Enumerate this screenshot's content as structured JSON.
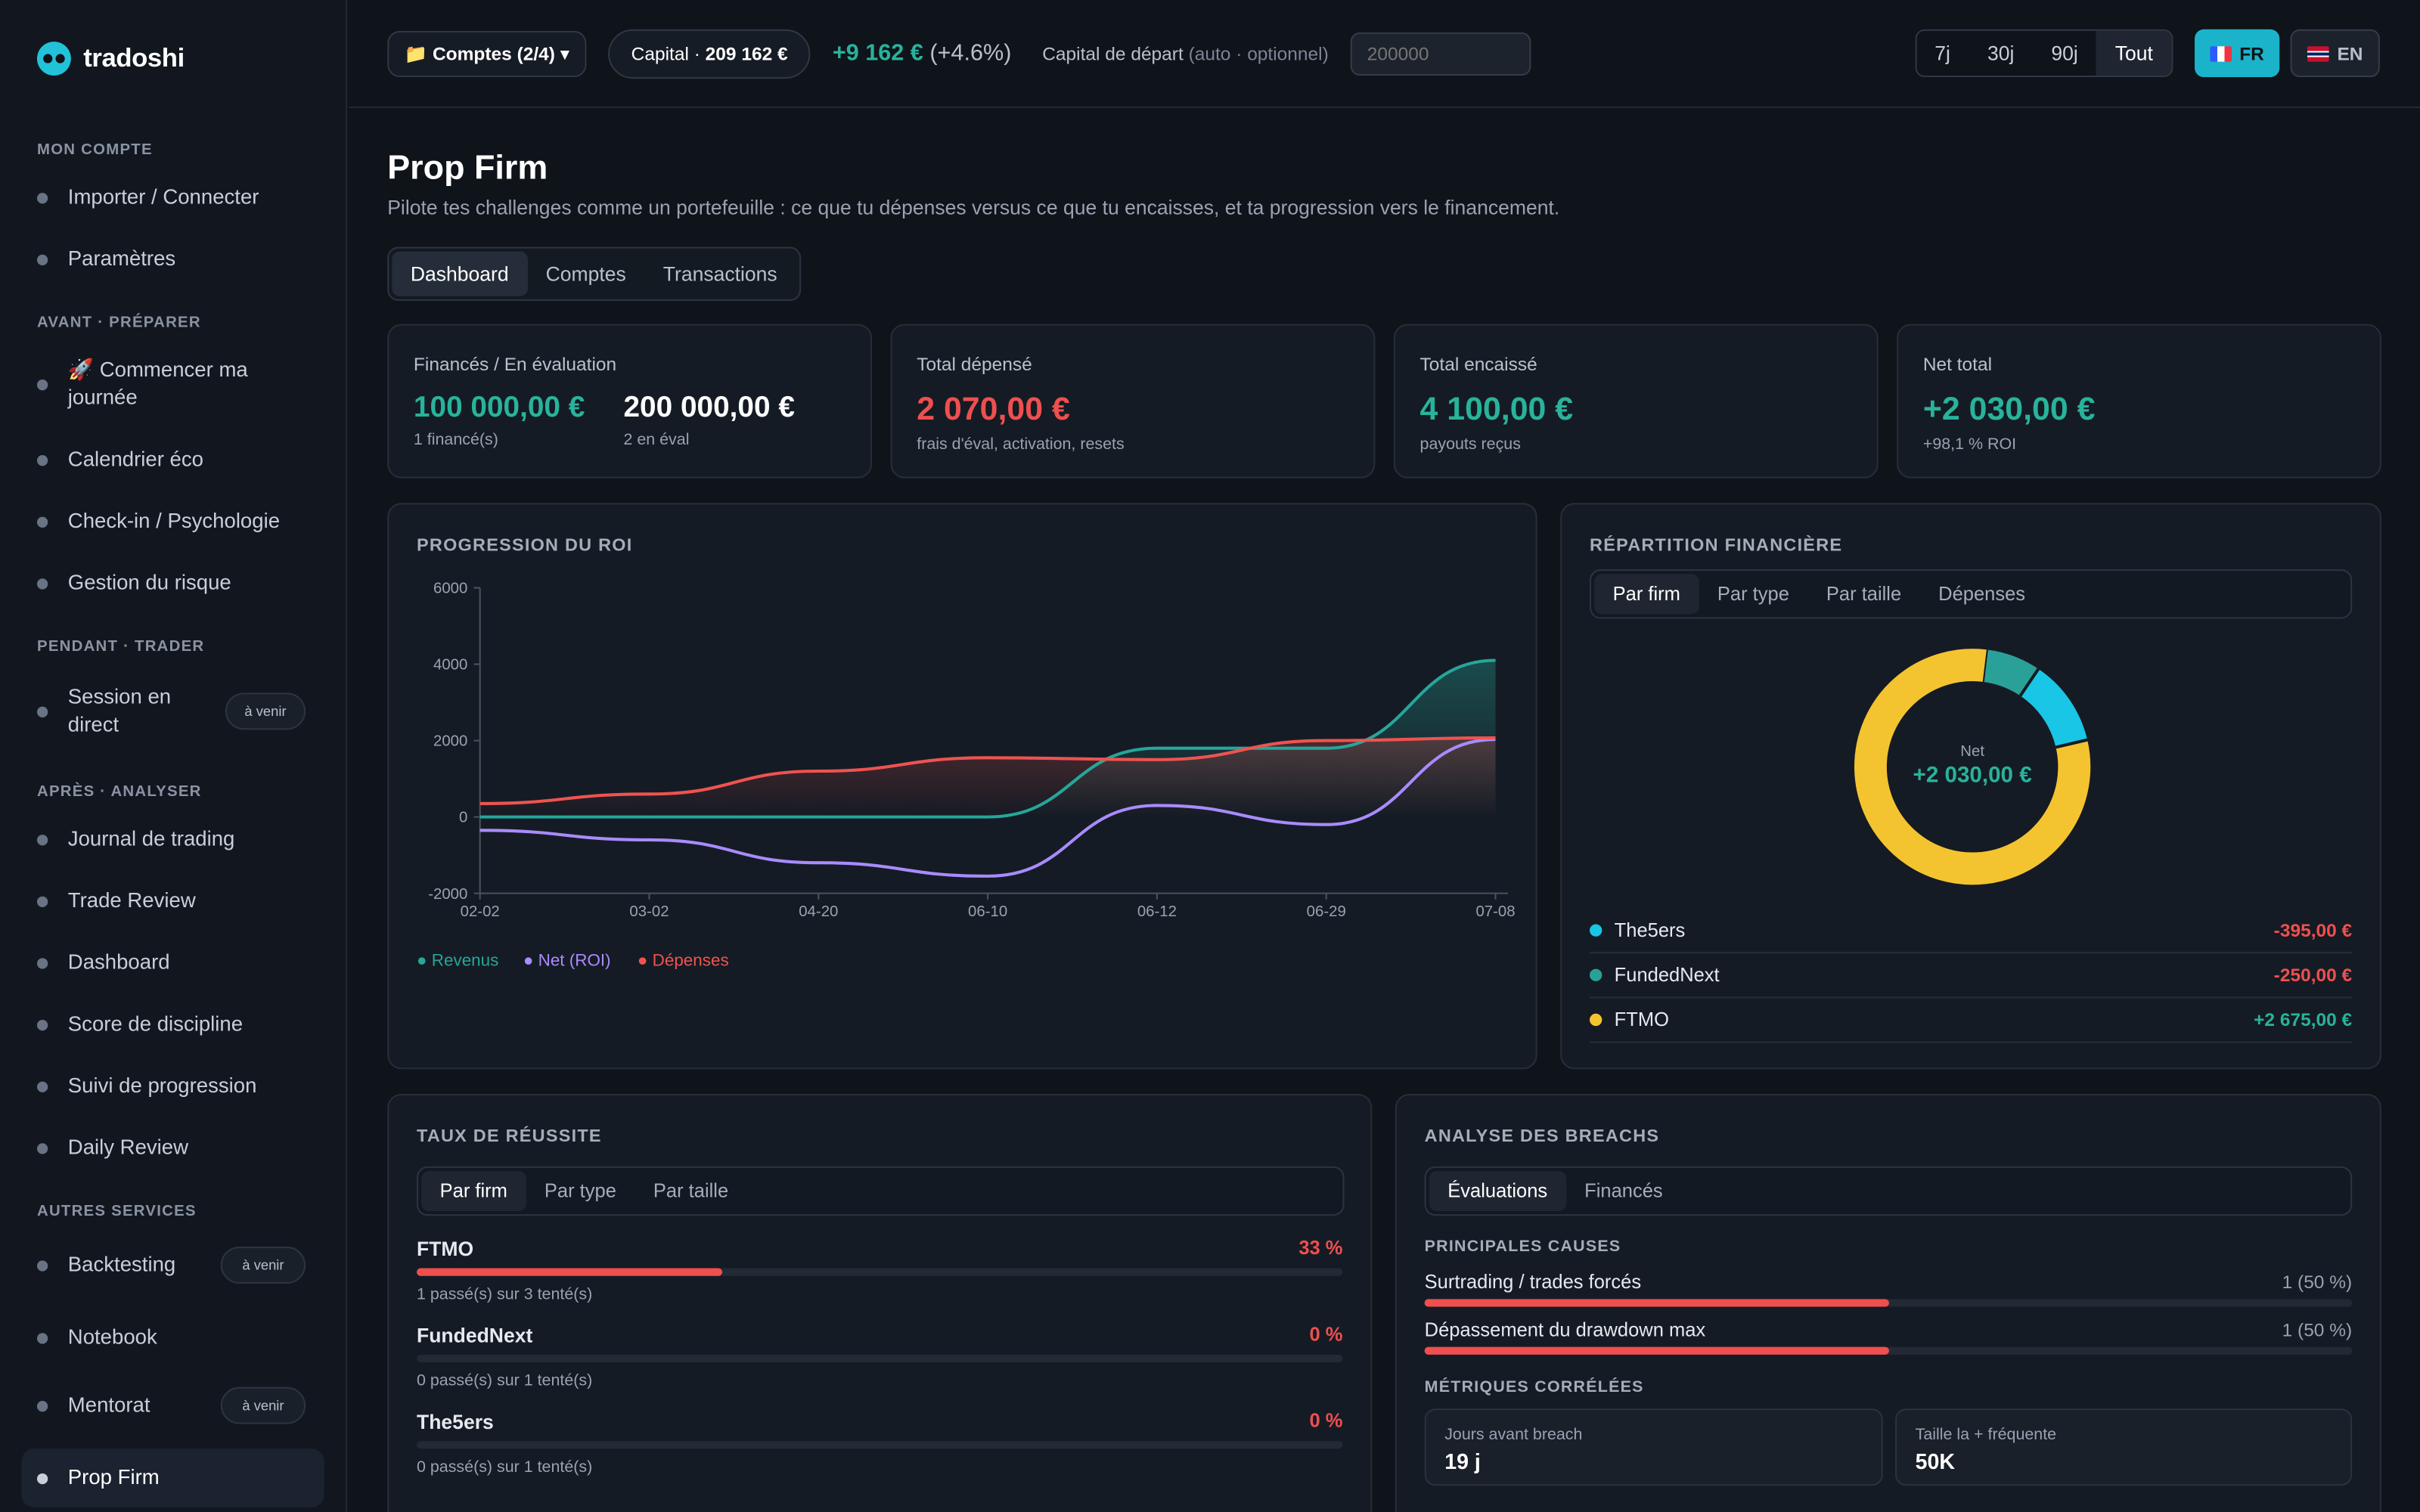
{
  "brand": {
    "name": "tradoshi"
  },
  "sidebar": {
    "sections": [
      "MON COMPTE",
      "AVANT · PRÉPARER",
      "PENDANT · TRADER",
      "APRÈS · ANALYSER",
      "AUTRES SERVICES"
    ],
    "items": [
      {
        "label": "Importer / Connecter"
      },
      {
        "label": "Paramètres"
      },
      {
        "label": "🚀 Commencer ma journée"
      },
      {
        "label": "Calendrier éco"
      },
      {
        "label": "Check-in / Psychologie"
      },
      {
        "label": "Gestion du risque"
      },
      {
        "label": "Session en direct",
        "badge": "à venir"
      },
      {
        "label": "Journal de trading"
      },
      {
        "label": "Trade Review"
      },
      {
        "label": "Dashboard"
      },
      {
        "label": "Score de discipline"
      },
      {
        "label": "Suivi de progression"
      },
      {
        "label": "Daily Review"
      },
      {
        "label": "Backtesting",
        "badge": "à venir"
      },
      {
        "label": "Notebook"
      },
      {
        "label": "Mentorat",
        "badge": "à venir"
      },
      {
        "label": "Prop Firm"
      }
    ]
  },
  "topbar": {
    "accounts": "📁 Comptes (2/4) ▾",
    "capital_label": "Capital · ",
    "capital_value": "209 162 €",
    "pnl": "+9 162 €",
    "pnl_pct": "(+4.6%)",
    "start_label": "Capital de départ",
    "start_hint": "(auto · optionnel)",
    "start_placeholder": "200000",
    "periods": [
      "7j",
      "30j",
      "90j",
      "Tout"
    ],
    "active_period": "Tout",
    "lang_fr": "FR",
    "lang_en": "EN"
  },
  "page": {
    "title": "Prop Firm",
    "subtitle": "Pilote tes challenges comme un portefeuille : ce que tu dépenses versus ce que tu encaisses, et ta progression vers le financement.",
    "tabs": [
      "Dashboard",
      "Comptes",
      "Transactions"
    ]
  },
  "stats": {
    "funded": {
      "label": "Financés / En évaluation",
      "v1": "100 000,00 €",
      "s1": "1 financé(s)",
      "v2": "200 000,00 €",
      "s2": "2 en éval"
    },
    "spent": {
      "label": "Total dépensé",
      "value": "2 070,00 €",
      "sub": "frais d'éval, activation, resets"
    },
    "cashed": {
      "label": "Total encaissé",
      "value": "4 100,00 €",
      "sub": "payouts reçus"
    },
    "net": {
      "label": "Net total",
      "value": "+2 030,00 €",
      "sub": "+98,1 % ROI"
    }
  },
  "roi": {
    "title": "PROGRESSION DU ROI"
  },
  "chart_data": {
    "type": "line",
    "title": "PROGRESSION DU ROI",
    "categories": [
      "02-02",
      "03-02",
      "04-20",
      "06-10",
      "06-12",
      "06-29",
      "07-08"
    ],
    "ylim": [
      -2000,
      6000
    ],
    "yticks": [
      6000,
      4000,
      2000,
      0,
      -2000
    ],
    "series": [
      {
        "name": "Revenus",
        "color": "#26a69a",
        "values": [
          0,
          0,
          0,
          0,
          1800,
          1800,
          4100
        ]
      },
      {
        "name": "Net (ROI)",
        "color": "#a98bff",
        "values": [
          -350,
          -600,
          -1200,
          -1550,
          300,
          -200,
          2030
        ]
      },
      {
        "name": "Dépenses",
        "color": "#ef5350",
        "values": [
          350,
          600,
          1200,
          1550,
          1500,
          2000,
          2070
        ]
      }
    ]
  },
  "repartition": {
    "title": "RÉPARTITION FINANCIÈRE",
    "tabs": [
      "Par firm",
      "Par type",
      "Par taille",
      "Dépenses"
    ],
    "center_label": "Net",
    "center_value": "+2 030,00 €",
    "slices": [
      {
        "name": "The5ers",
        "value": "-395,00 €",
        "share": 395,
        "color": "#19c6e6",
        "neg": true
      },
      {
        "name": "FundedNext",
        "value": "-250,00 €",
        "share": 250,
        "color": "#2aa198",
        "neg": true
      },
      {
        "name": "FTMO",
        "value": "+2 675,00 €",
        "share": 2675,
        "color": "#f4c430",
        "neg": false
      }
    ]
  },
  "success": {
    "title": "TAUX DE RÉUSSITE",
    "tabs": [
      "Par firm",
      "Par type",
      "Par taille"
    ],
    "rows": [
      {
        "name": "FTMO",
        "pct": "33 %",
        "rate": 0.33,
        "sub": "1 passé(s) sur 3 tenté(s)"
      },
      {
        "name": "FundedNext",
        "pct": "0 %",
        "rate": 0,
        "sub": "0 passé(s) sur 1 tenté(s)"
      },
      {
        "name": "The5ers",
        "pct": "0 %",
        "rate": 0,
        "sub": "0 passé(s) sur 1 tenté(s)"
      }
    ]
  },
  "breach": {
    "title": "ANALYSE DES BREACHS",
    "tabs": [
      "Évaluations",
      "Financés"
    ],
    "causes_title": "PRINCIPALES CAUSES",
    "causes": [
      {
        "label": "Surtrading / trades forcés",
        "value": "1 (50 %)",
        "rate": 0.5
      },
      {
        "label": "Dépassement du drawdown max",
        "value": "1 (50 %)",
        "rate": 0.5
      }
    ],
    "metrics_title": "MÉTRIQUES CORRÉLÉES",
    "metrics": [
      {
        "label": "Jours avant breach",
        "value": "19 j"
      },
      {
        "label": "Taille la + fréquente",
        "value": "50K"
      }
    ]
  }
}
